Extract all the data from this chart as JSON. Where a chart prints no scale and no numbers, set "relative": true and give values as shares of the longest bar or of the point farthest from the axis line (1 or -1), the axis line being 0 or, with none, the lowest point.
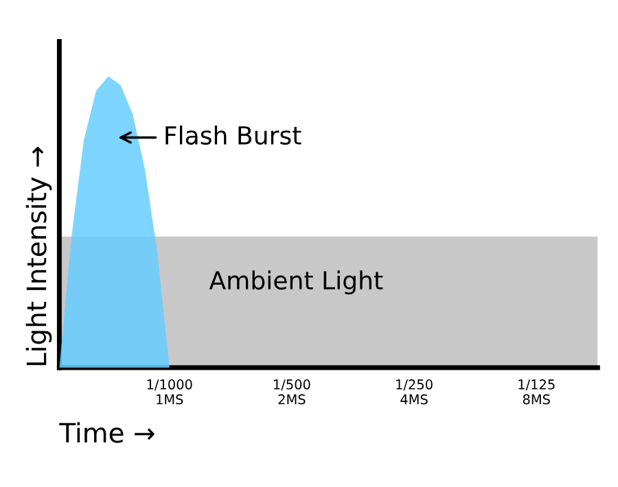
{
  "chart_data": {
    "type": "area",
    "relative": true,
    "xlabel": "Time →",
    "ylabel": "Light Intensity →",
    "categories": [
      null,
      null,
      null,
      null,
      null,
      null,
      null,
      null,
      null,
      "1/1000\n1MS",
      null,
      null,
      null,
      null,
      null,
      null,
      null,
      null,
      null,
      "1/500\n2MS",
      null,
      null,
      null,
      null,
      null,
      null,
      null,
      null,
      null,
      "1/250\n4MS",
      null,
      null,
      null,
      null,
      null,
      null,
      null,
      null,
      null,
      "1/125\n8MS",
      null,
      null,
      null,
      null,
      null
    ],
    "grid": false,
    "legend": false,
    "series": [
      {
        "name": "Ambient Light",
        "color": "#c8c8c8",
        "values": [
          0.45,
          0.45,
          0.45,
          0.45,
          0.45,
          0.45,
          0.45,
          0.45,
          0.45,
          0.45,
          0.45,
          0.45,
          0.45,
          0.45,
          0.45,
          0.45,
          0.45,
          0.45,
          0.45,
          0.45,
          0.45,
          0.45,
          0.45,
          0.45,
          0.45,
          0.45,
          0.45,
          0.45,
          0.45,
          0.45,
          0.45,
          0.45,
          0.45,
          0.45,
          0.45,
          0.45,
          0.45,
          0.45,
          0.45,
          0.45,
          0.45,
          0.45,
          0.45,
          0.45,
          0.45
        ]
      },
      {
        "name": "Flash Burst",
        "color": "#66ccff",
        "values": [
          0,
          0.45,
          0.78,
          0.95,
          1,
          0.97,
          0.87,
          0.68,
          0.4,
          0,
          null,
          null,
          null,
          null,
          null,
          null,
          null,
          null,
          null,
          null,
          null,
          null,
          null,
          null,
          null,
          null,
          null,
          null,
          null,
          null,
          null,
          null,
          null,
          null,
          null,
          null,
          null,
          null,
          null,
          null,
          null,
          null,
          null,
          null,
          null
        ]
      }
    ]
  }
}
